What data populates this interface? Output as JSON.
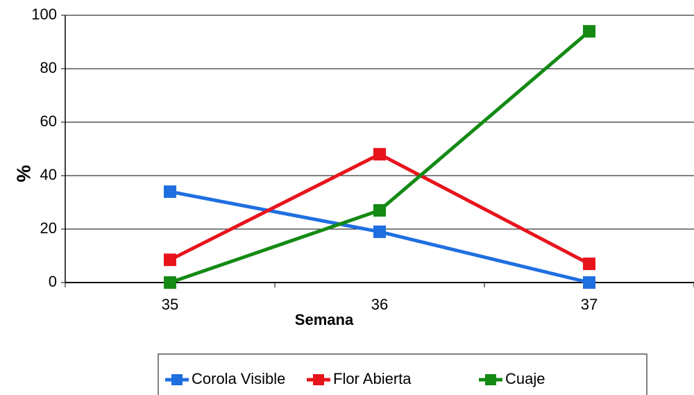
{
  "chart_data": {
    "type": "line",
    "x_label": "Semana",
    "y_label": "%",
    "categories": [
      "35",
      "36",
      "37"
    ],
    "series": [
      {
        "name": "Corola Visible",
        "color": "#1f6fe0",
        "values": [
          34,
          19,
          0
        ]
      },
      {
        "name": "Flor Abierta",
        "color": "#e8141c",
        "values": [
          8.5,
          48,
          7
        ]
      },
      {
        "name": "Cuaje",
        "color": "#148a14",
        "values": [
          0,
          27,
          94
        ]
      }
    ],
    "ylim": [
      0,
      100
    ],
    "yticks": [
      0,
      20,
      40,
      60,
      80,
      100
    ],
    "grid": true,
    "legend": "bottom"
  }
}
